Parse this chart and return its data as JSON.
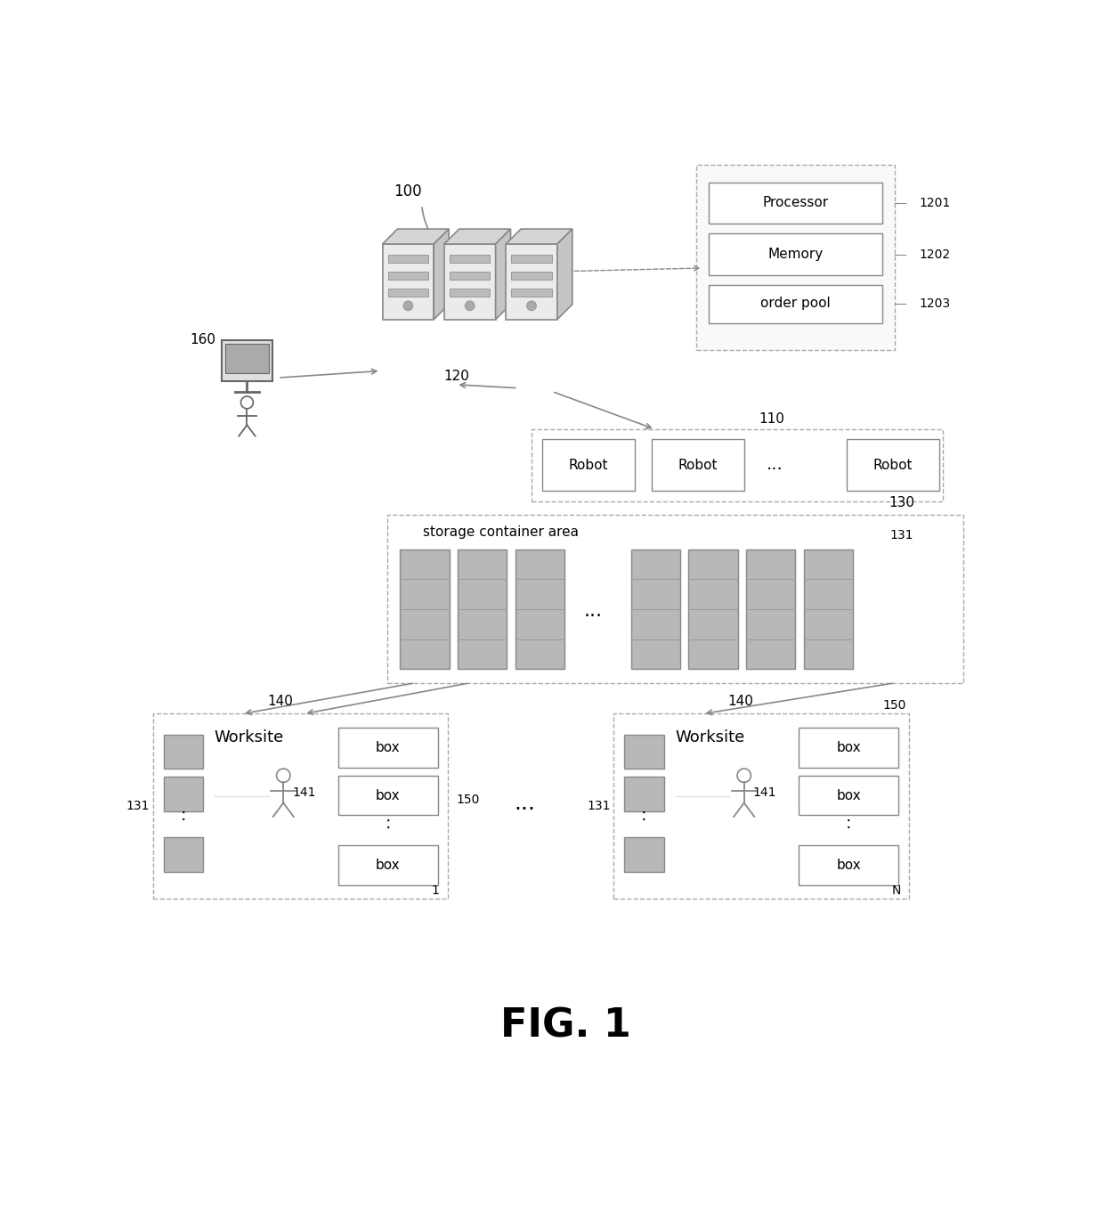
{
  "bg_color": "#ffffff",
  "fig_label": "FIG. 1",
  "label_100": "100",
  "label_120": "120",
  "label_110": "110",
  "label_160": "160",
  "label_130": "130",
  "label_131": "131",
  "label_140": "140",
  "label_141": "141",
  "label_150": "150",
  "label_1201": "1201",
  "label_1202": "1202",
  "label_1203": "1203",
  "label_1": "1",
  "label_N": "N",
  "text_processor": "Processor",
  "text_memory": "Memory",
  "text_order_pool": "order pool",
  "text_robot": "Robot",
  "text_storage": "storage container area",
  "text_worksite": "Worksite",
  "text_box": "box",
  "server_face_color": "#e8e8e8",
  "server_top_color": "#d0d0d0",
  "server_side_color": "#c0c0c0",
  "shelf_color": "#b0b0b0",
  "shelf_edge_color": "#888888",
  "box_edge_color": "#888888",
  "dashed_edge_color": "#aaaaaa",
  "line_color": "#888888",
  "dots_between_robots": "...",
  "dots_between_worksites": "..."
}
